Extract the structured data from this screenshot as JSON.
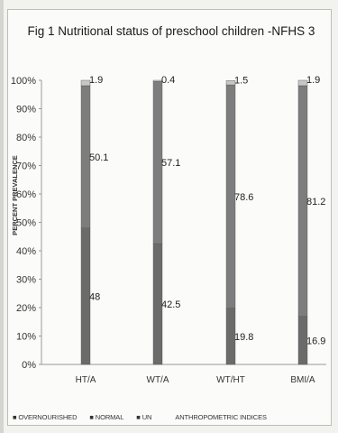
{
  "chart_data": {
    "type": "bar",
    "stacked": true,
    "percent": true,
    "title": "Fig 1 Nutritional status of preschool children -NFHS 3",
    "ylabel": "PERCENT PREVALENCE",
    "xlabel": "ANTHROPOMETRIC INDICES",
    "categories": [
      "HT/A",
      "WT/A",
      "WT/HT",
      "BMI/A"
    ],
    "yticks": [
      "0%",
      "10%",
      "20%",
      "30%",
      "40%",
      "50%",
      "60%",
      "70%",
      "80%",
      "90%",
      "100%"
    ],
    "ylim": [
      0,
      100
    ],
    "grid": false,
    "legend_position": "bottom-left",
    "series": [
      {
        "name": "UN",
        "values": [
          48,
          42.5,
          19.8,
          16.9
        ],
        "labels": [
          "48",
          "42.5",
          "19.8",
          "16.9"
        ],
        "color": "#6b6b6b"
      },
      {
        "name": "NORMAL",
        "values": [
          50.1,
          57.1,
          78.6,
          81.2
        ],
        "labels": [
          "50.1",
          "57.1",
          "78.6",
          "81.2"
        ],
        "color": "#7d7d7d"
      },
      {
        "name": "OVERNOURISHED",
        "values": [
          1.9,
          0.4,
          1.5,
          1.9
        ],
        "labels": [
          "1.9",
          "0.4",
          "1.5",
          "1.9"
        ],
        "color": "#c7c7c7"
      }
    ],
    "legend_entries": [
      "OVERNOURISHED",
      "NORMAL",
      "UN"
    ]
  }
}
